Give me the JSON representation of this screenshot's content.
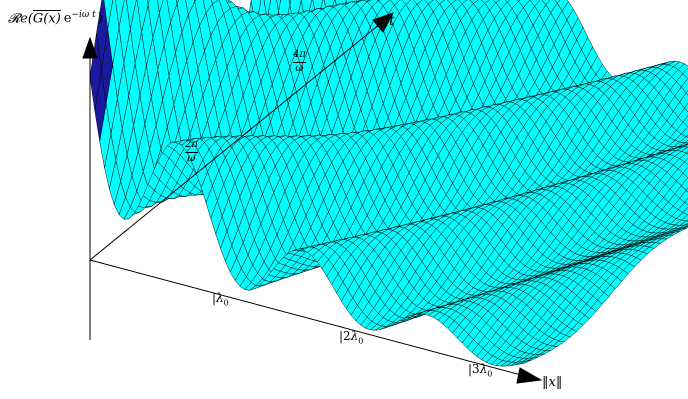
{
  "axes": {
    "vertical_label": "𝓡e(G(x) e⁻ⁱʷᵗ)",
    "vertical_label_parts": {
      "prefix": "𝓡e(",
      "overlined": "G(x)",
      "e": "e",
      "exponent": "−iω t",
      "suffix": ")"
    },
    "time_label": "t",
    "space_label": "‖x‖"
  },
  "time_ticks": [
    {
      "num": "2π",
      "den": "ω"
    },
    {
      "num": "4π",
      "den": "ω"
    }
  ],
  "space_ticks": [
    {
      "mult": "",
      "sym": "λ",
      "sub": "0"
    },
    {
      "mult": "2",
      "sym": "λ",
      "sub": "0"
    },
    {
      "mult": "3",
      "sym": "λ",
      "sub": "0"
    }
  ],
  "colors": {
    "surface": "#00ffff",
    "mesh": "#000000",
    "underside": "#1a1aa0",
    "axis": "#000000"
  }
}
